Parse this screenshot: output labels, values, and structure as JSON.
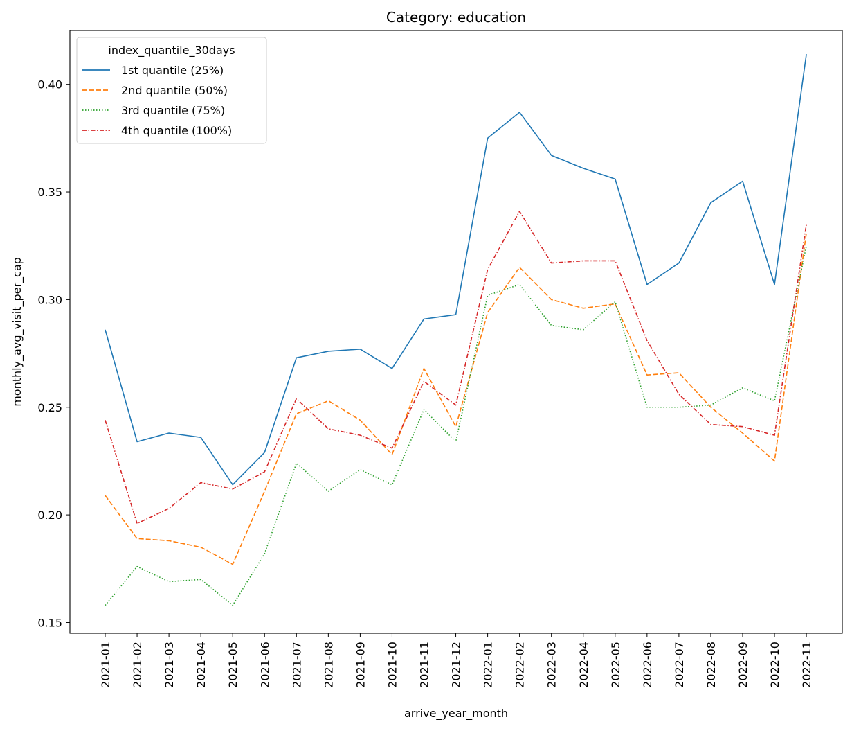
{
  "chart_data": {
    "type": "line",
    "title": "Category: education",
    "xlabel": "arrive_year_month",
    "ylabel": "monthly_avg_visit_per_cap",
    "categories": [
      "2021-01",
      "2021-02",
      "2021-03",
      "2021-04",
      "2021-05",
      "2021-06",
      "2021-07",
      "2021-08",
      "2021-09",
      "2021-10",
      "2021-11",
      "2021-12",
      "2022-01",
      "2022-02",
      "2022-03",
      "2022-04",
      "2022-05",
      "2022-06",
      "2022-07",
      "2022-08",
      "2022-09",
      "2022-10",
      "2022-11"
    ],
    "ylim": [
      0.145,
      0.425
    ],
    "yticks": [
      0.15,
      0.2,
      0.25,
      0.3,
      0.35,
      0.4
    ],
    "ytick_labels": [
      "0.15",
      "0.20",
      "0.25",
      "0.30",
      "0.35",
      "0.40"
    ],
    "grid": false,
    "legend": {
      "title": "index_quantile_30days",
      "placement": "top-left"
    },
    "series": [
      {
        "name": "1st quantile (25%)",
        "color": "#1f77b4",
        "dash": "solid",
        "values": [
          0.286,
          0.234,
          0.238,
          0.236,
          0.214,
          0.229,
          0.273,
          0.276,
          0.277,
          0.268,
          0.291,
          0.293,
          0.375,
          0.387,
          0.367,
          0.361,
          0.356,
          0.307,
          0.317,
          0.345,
          0.355,
          0.307,
          0.414
        ]
      },
      {
        "name": "2nd quantile (50%)",
        "color": "#ff7f0e",
        "dash": "dashed",
        "values": [
          0.209,
          0.189,
          0.188,
          0.185,
          0.177,
          0.211,
          0.247,
          0.253,
          0.244,
          0.228,
          0.268,
          0.241,
          0.294,
          0.315,
          0.3,
          0.296,
          0.298,
          0.265,
          0.266,
          0.25,
          0.238,
          0.225,
          0.331
        ]
      },
      {
        "name": "3rd quantile (75%)",
        "color": "#2ca02c",
        "dash": "dotted",
        "values": [
          0.158,
          0.176,
          0.169,
          0.17,
          0.158,
          0.182,
          0.224,
          0.211,
          0.221,
          0.214,
          0.249,
          0.234,
          0.302,
          0.307,
          0.288,
          0.286,
          0.299,
          0.25,
          0.25,
          0.251,
          0.259,
          0.253,
          0.325
        ]
      },
      {
        "name": "4th quantile (100%)",
        "color": "#d62728",
        "dash": "dashdot",
        "values": [
          0.244,
          0.196,
          0.203,
          0.215,
          0.212,
          0.22,
          0.254,
          0.24,
          0.237,
          0.231,
          0.262,
          0.251,
          0.314,
          0.341,
          0.317,
          0.318,
          0.318,
          0.281,
          0.256,
          0.242,
          0.241,
          0.237,
          0.335
        ]
      }
    ]
  }
}
